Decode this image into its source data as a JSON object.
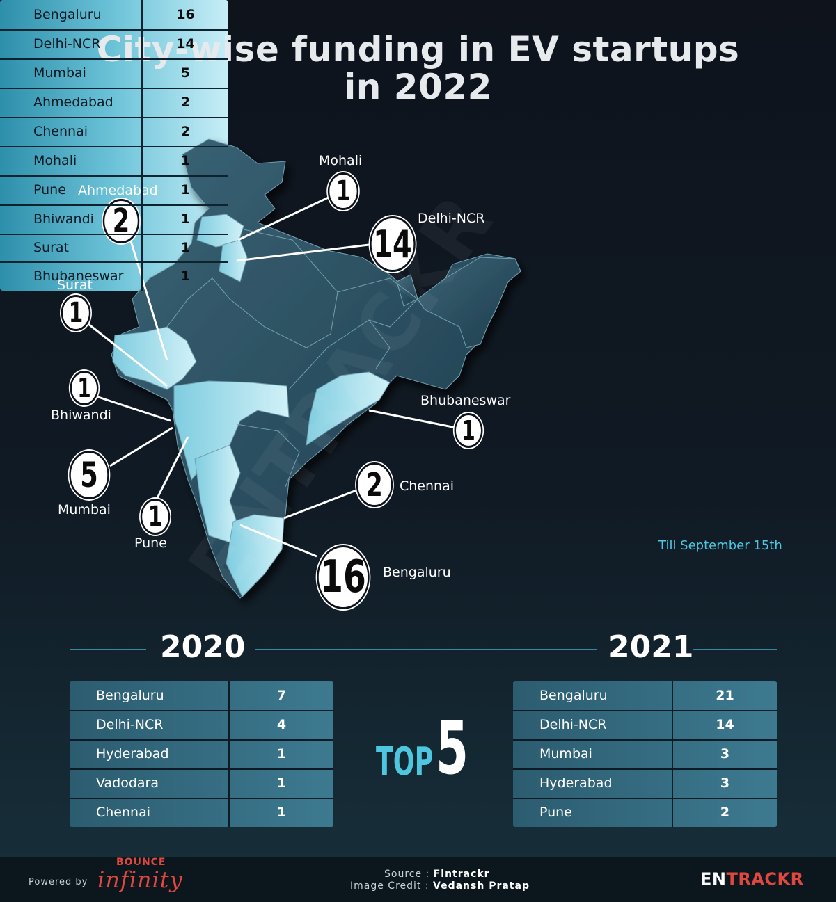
{
  "title": {
    "line1": "City-wise funding in EV startups",
    "line2": "in 2022"
  },
  "map": {
    "cities": [
      {
        "name": "Mohali",
        "count": "1"
      },
      {
        "name": "Ahmedabad",
        "count": "2"
      },
      {
        "name": "Delhi-NCR",
        "count": "14"
      },
      {
        "name": "Surat",
        "count": "1"
      },
      {
        "name": "Bhiwandi",
        "count": "1"
      },
      {
        "name": "Bhubaneswar",
        "count": "1"
      },
      {
        "name": "Mumbai",
        "count": "5"
      },
      {
        "name": "Chennai",
        "count": "2"
      },
      {
        "name": "Pune",
        "count": "1"
      },
      {
        "name": "Bengaluru",
        "count": "16"
      }
    ]
  },
  "table_2022": {
    "rows": [
      {
        "city": "Bengaluru",
        "value": "16"
      },
      {
        "city": "Delhi-NCR",
        "value": "14"
      },
      {
        "city": "Mumbai",
        "value": "5"
      },
      {
        "city": "Ahmedabad",
        "value": "2"
      },
      {
        "city": "Chennai",
        "value": "2"
      },
      {
        "city": "Mohali",
        "value": "1"
      },
      {
        "city": "Pune",
        "value": "1"
      },
      {
        "city": "Bhiwandi",
        "value": "1"
      },
      {
        "city": "Surat",
        "value": "1"
      },
      {
        "city": "Bhubaneswar",
        "value": "1"
      }
    ],
    "note": "Till September 15th"
  },
  "year_2020": {
    "label": "2020",
    "rows": [
      {
        "city": "Bengaluru",
        "value": "7"
      },
      {
        "city": "Delhi-NCR",
        "value": "4"
      },
      {
        "city": "Hyderabad",
        "value": "1"
      },
      {
        "city": "Vadodara",
        "value": "1"
      },
      {
        "city": "Chennai",
        "value": "1"
      }
    ]
  },
  "year_2021": {
    "label": "2021",
    "rows": [
      {
        "city": "Bengaluru",
        "value": "21"
      },
      {
        "city": "Delhi-NCR",
        "value": "14"
      },
      {
        "city": "Mumbai",
        "value": "3"
      },
      {
        "city": "Hyderabad",
        "value": "3"
      },
      {
        "city": "Pune",
        "value": "2"
      }
    ]
  },
  "top5": {
    "text": "TOP",
    "number": "5"
  },
  "footer": {
    "powered_by": "Powered by",
    "brand_top": "BOUNCE",
    "brand_main": "infinity",
    "source_label": "Source : ",
    "source_value": "Fintrackr",
    "credit_label": "Image Credit : ",
    "credit_value": "Vedansh Pratap",
    "logo_part1": "EN",
    "logo_part2": "TRACKR"
  },
  "watermark": "ENTRACKR",
  "colors": {
    "accent": "#4fc6e0",
    "brand_red": "#e0483f",
    "map_dark": "#2d5466",
    "map_light": "#bfeaf4"
  }
}
